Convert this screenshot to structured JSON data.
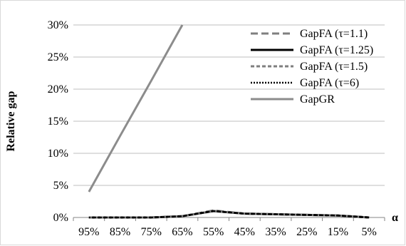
{
  "chart_data": {
    "type": "line",
    "title": "",
    "xlabel": "α",
    "ylabel": "Relative gap",
    "categories": [
      "95%",
      "85%",
      "75%",
      "65%",
      "55%",
      "45%",
      "35%",
      "25%",
      "15%",
      "5%"
    ],
    "ylim": [
      0,
      30
    ],
    "yticks": [
      "0%",
      "5%",
      "10%",
      "15%",
      "20%",
      "25%",
      "30%"
    ],
    "grid": "horizontal",
    "legend_position": "top-right",
    "series": [
      {
        "name": "GapFA (τ=1.1)",
        "color": "#7f7f7f",
        "dash": "dashed-long",
        "values": [
          0.0,
          0.0,
          0.0,
          0.2,
          1.1,
          0.6,
          0.5,
          0.4,
          0.3,
          0.0
        ]
      },
      {
        "name": "GapFA (τ=1.25)",
        "color": "#000000",
        "dash": "solid",
        "values": [
          0.0,
          0.0,
          0.0,
          0.2,
          1.0,
          0.6,
          0.5,
          0.4,
          0.3,
          0.0
        ]
      },
      {
        "name": "GapFA (τ=1.5)",
        "color": "#7f7f7f",
        "dash": "dashed",
        "values": [
          0.0,
          0.0,
          0.0,
          0.2,
          1.0,
          0.6,
          0.5,
          0.4,
          0.3,
          0.0
        ]
      },
      {
        "name": "GapFA (τ=6)",
        "color": "#000000",
        "dash": "dotted",
        "values": [
          0.0,
          0.0,
          0.0,
          0.2,
          1.0,
          0.6,
          0.5,
          0.4,
          0.3,
          0.0
        ]
      },
      {
        "name": "GapGR",
        "color": "#8c8c8c",
        "dash": "solid",
        "values": [
          4.0,
          12.7,
          21.3,
          30.0,
          null,
          null,
          null,
          null,
          null,
          null
        ]
      }
    ]
  }
}
